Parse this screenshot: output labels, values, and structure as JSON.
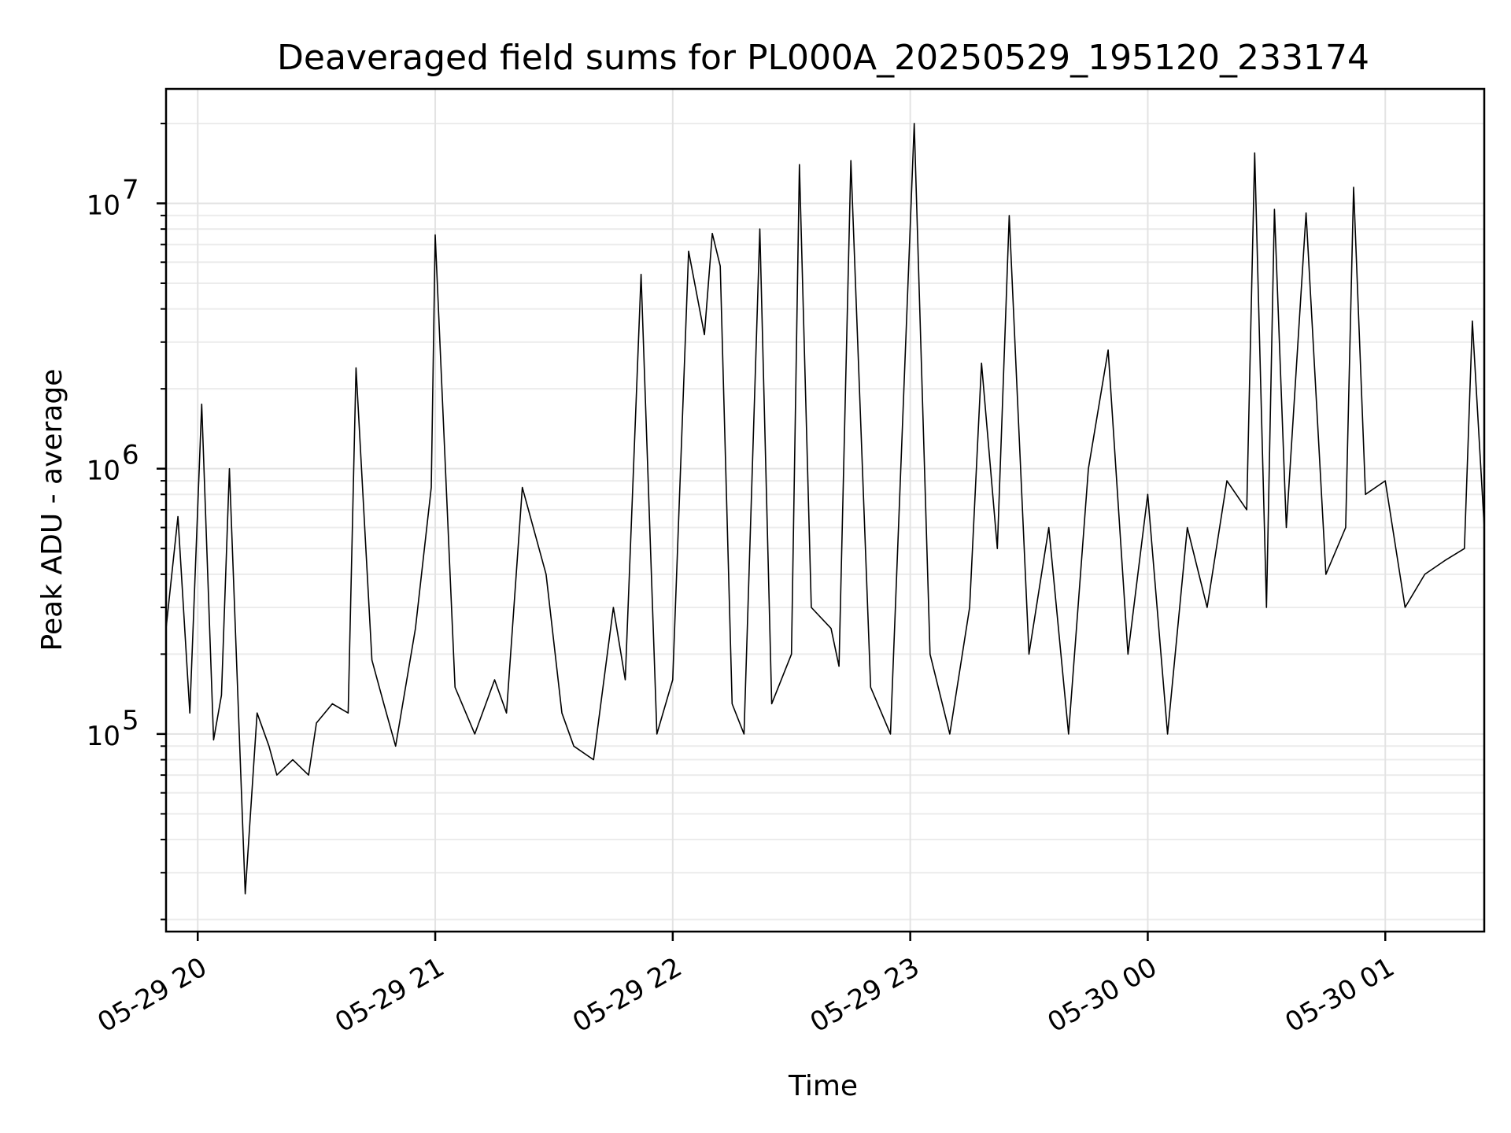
{
  "chart_data": {
    "type": "line",
    "title": "Deaveraged field sums for PL000A_20250529_195120_233174",
    "xlabel": "Time",
    "ylabel": "Peak ADU - average",
    "yscale": "log",
    "grid": true,
    "line_color": "#000000",
    "xlim": [
      "2025-05-29 19:52",
      "2025-05-30 01:25"
    ],
    "ylim": [
      18000,
      27000000
    ],
    "x_ticks": [
      {
        "value": "2025-05-29 20:00",
        "label": "05-29 20"
      },
      {
        "value": "2025-05-29 21:00",
        "label": "05-29 21"
      },
      {
        "value": "2025-05-29 22:00",
        "label": "05-29 22"
      },
      {
        "value": "2025-05-29 23:00",
        "label": "05-29 23"
      },
      {
        "value": "2025-05-30 00:00",
        "label": "05-30 00"
      },
      {
        "value": "2025-05-30 01:00",
        "label": "05-30 01"
      }
    ],
    "y_ticks": [
      {
        "value": 100000,
        "base": "10",
        "exp": "5"
      },
      {
        "value": 1000000,
        "base": "10",
        "exp": "6"
      },
      {
        "value": 10000000,
        "base": "10",
        "exp": "7"
      }
    ],
    "series": [
      {
        "x": [
          "2025-05-29 19:52",
          "2025-05-29 19:55",
          "2025-05-29 19:58",
          "2025-05-29 20:01",
          "2025-05-29 20:04",
          "2025-05-29 20:06",
          "2025-05-29 20:08",
          "2025-05-29 20:12",
          "2025-05-29 20:15",
          "2025-05-29 20:18",
          "2025-05-29 20:20",
          "2025-05-29 20:24",
          "2025-05-29 20:28",
          "2025-05-29 20:30",
          "2025-05-29 20:34",
          "2025-05-29 20:38",
          "2025-05-29 20:40",
          "2025-05-29 20:44",
          "2025-05-29 20:47",
          "2025-05-29 20:50",
          "2025-05-29 20:55",
          "2025-05-29 20:59",
          "2025-05-29 21:00",
          "2025-05-29 21:05",
          "2025-05-29 21:10",
          "2025-05-29 21:15",
          "2025-05-29 21:18",
          "2025-05-29 21:22",
          "2025-05-29 21:28",
          "2025-05-29 21:32",
          "2025-05-29 21:35",
          "2025-05-29 21:40",
          "2025-05-29 21:45",
          "2025-05-29 21:48",
          "2025-05-29 21:52",
          "2025-05-29 21:56",
          "2025-05-29 22:00",
          "2025-05-29 22:04",
          "2025-05-29 22:08",
          "2025-05-29 22:10",
          "2025-05-29 22:12",
          "2025-05-29 22:15",
          "2025-05-29 22:18",
          "2025-05-29 22:22",
          "2025-05-29 22:25",
          "2025-05-29 22:30",
          "2025-05-29 22:32",
          "2025-05-29 22:35",
          "2025-05-29 22:40",
          "2025-05-29 22:42",
          "2025-05-29 22:45",
          "2025-05-29 22:50",
          "2025-05-29 22:55",
          "2025-05-29 23:01",
          "2025-05-29 23:05",
          "2025-05-29 23:10",
          "2025-05-29 23:15",
          "2025-05-29 23:18",
          "2025-05-29 23:22",
          "2025-05-29 23:25",
          "2025-05-29 23:30",
          "2025-05-29 23:35",
          "2025-05-29 23:40",
          "2025-05-29 23:45",
          "2025-05-29 23:50",
          "2025-05-29 23:55",
          "2025-05-30 00:00",
          "2025-05-30 00:05",
          "2025-05-30 00:10",
          "2025-05-30 00:15",
          "2025-05-30 00:20",
          "2025-05-30 00:25",
          "2025-05-30 00:27",
          "2025-05-30 00:30",
          "2025-05-30 00:32",
          "2025-05-30 00:35",
          "2025-05-30 00:40",
          "2025-05-30 00:45",
          "2025-05-30 00:50",
          "2025-05-30 00:52",
          "2025-05-30 00:55",
          "2025-05-30 01:00",
          "2025-05-30 01:05",
          "2025-05-30 01:10",
          "2025-05-30 01:15",
          "2025-05-30 01:20",
          "2025-05-30 01:22",
          "2025-05-30 01:25"
        ],
        "y": [
          250000,
          660000,
          120000,
          1750000,
          95000,
          140000,
          1000000,
          25000,
          120000,
          90000,
          70000,
          80000,
          70000,
          110000,
          130000,
          120000,
          2400000,
          190000,
          130000,
          90000,
          250000,
          850000,
          7600000,
          150000,
          100000,
          160000,
          120000,
          850000,
          400000,
          120000,
          90000,
          80000,
          300000,
          160000,
          5400000,
          100000,
          160000,
          6600000,
          3200000,
          7700000,
          5800000,
          130000,
          100000,
          8000000,
          130000,
          200000,
          14000000,
          300000,
          250000,
          180000,
          14500000,
          150000,
          100000,
          20000000,
          200000,
          100000,
          300000,
          2500000,
          500000,
          9000000,
          200000,
          600000,
          100000,
          1000000,
          2800000,
          200000,
          800000,
          100000,
          600000,
          300000,
          900000,
          700000,
          15500000,
          300000,
          9500000,
          600000,
          9200000,
          400000,
          600000,
          11500000,
          800000,
          900000,
          300000,
          400000,
          450000,
          500000,
          3600000,
          600000
        ]
      }
    ]
  }
}
